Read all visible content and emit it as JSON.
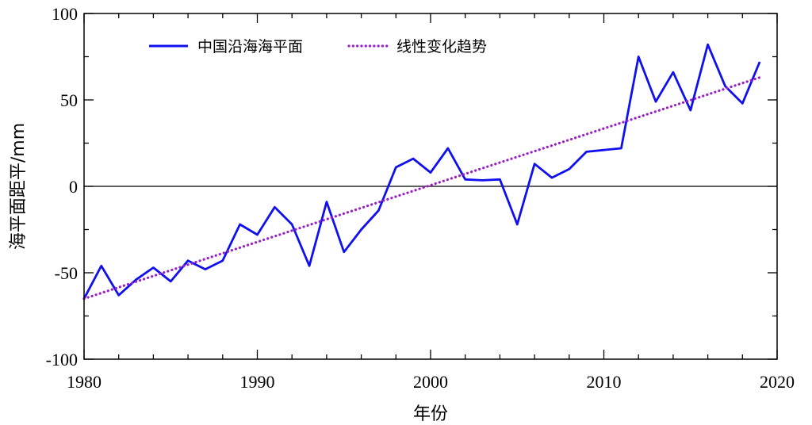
{
  "chart_data": {
    "type": "line",
    "title": "",
    "xlabel": "年份",
    "ylabel": "海平面距平/mm",
    "xlim": [
      1980,
      2020
    ],
    "ylim": [
      -100,
      100
    ],
    "xticks": [
      1980,
      1990,
      2000,
      2010,
      2020
    ],
    "yticks": [
      -100,
      -50,
      0,
      50,
      100
    ],
    "legend_position": "top-left",
    "grid": false,
    "series": [
      {
        "name": "中国沿海海平面",
        "color": "#1010ee",
        "style": "solid",
        "x": [
          1980,
          1981,
          1982,
          1983,
          1984,
          1985,
          1986,
          1987,
          1988,
          1989,
          1990,
          1991,
          1992,
          1993,
          1994,
          1995,
          1996,
          1997,
          1998,
          1999,
          2000,
          2001,
          2002,
          2003,
          2004,
          2005,
          2006,
          2007,
          2008,
          2009,
          2010,
          2011,
          2012,
          2013,
          2014,
          2015,
          2016,
          2017,
          2018,
          2019
        ],
        "y": [
          -65,
          -46,
          -63,
          -54,
          -47,
          -55,
          -43,
          -48,
          -43,
          -22,
          -28,
          -12,
          -22,
          -46,
          -9,
          -38,
          -25,
          -14,
          11,
          16,
          8,
          22,
          4,
          3.5,
          4,
          -22,
          13,
          5,
          10,
          20,
          21,
          22,
          75,
          49,
          66,
          44,
          82,
          58,
          48,
          72
        ]
      },
      {
        "name": "线性变化趋势",
        "color": "#9a1fc9",
        "style": "dotted",
        "x": [
          1980,
          2019
        ],
        "y": [
          -65,
          63
        ]
      }
    ],
    "reference_line": {
      "y": 0,
      "color": "#000000"
    }
  }
}
